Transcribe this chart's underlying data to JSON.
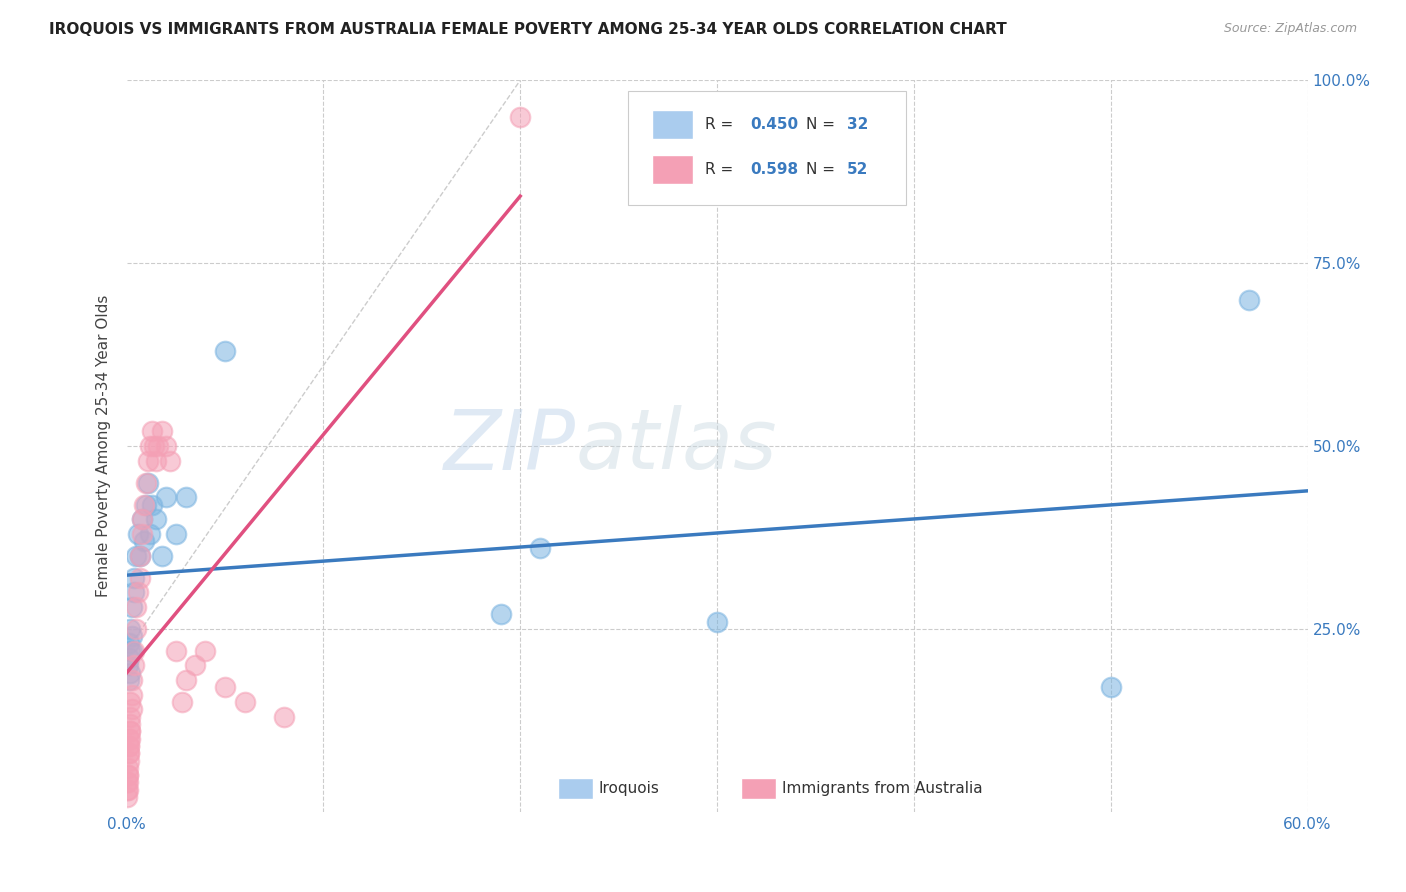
{
  "title": "IROQUOIS VS IMMIGRANTS FROM AUSTRALIA FEMALE POVERTY AMONG 25-34 YEAR OLDS CORRELATION CHART",
  "source": "Source: ZipAtlas.com",
  "ylabel": "Female Poverty Among 25-34 Year Olds",
  "xlim": [
    0.0,
    0.6
  ],
  "ylim": [
    0.0,
    1.0
  ],
  "iroquois_color": "#7ab3e0",
  "australia_color": "#f4a0b5",
  "iroquois_line_color": "#3a7abf",
  "australia_line_color": "#e05080",
  "watermark_zip": "ZIP",
  "watermark_atlas": "atlas",
  "iroquois_x": [
    0.0005,
    0.001,
    0.001,
    0.0015,
    0.002,
    0.002,
    0.002,
    0.003,
    0.003,
    0.003,
    0.004,
    0.004,
    0.005,
    0.006,
    0.007,
    0.008,
    0.009,
    0.01,
    0.011,
    0.012,
    0.013,
    0.015,
    0.018,
    0.02,
    0.025,
    0.03,
    0.05,
    0.19,
    0.21,
    0.3,
    0.5,
    0.57
  ],
  "iroquois_y": [
    0.2,
    0.18,
    0.23,
    0.21,
    0.22,
    0.25,
    0.19,
    0.24,
    0.28,
    0.22,
    0.3,
    0.32,
    0.35,
    0.38,
    0.35,
    0.4,
    0.37,
    0.42,
    0.45,
    0.38,
    0.42,
    0.4,
    0.35,
    0.43,
    0.38,
    0.43,
    0.63,
    0.27,
    0.36,
    0.26,
    0.17,
    0.7
  ],
  "australia_x": [
    0.0002,
    0.0003,
    0.0004,
    0.0005,
    0.0006,
    0.0007,
    0.0008,
    0.0009,
    0.001,
    0.001,
    0.0012,
    0.0013,
    0.0014,
    0.0015,
    0.0016,
    0.0017,
    0.0018,
    0.002,
    0.002,
    0.002,
    0.003,
    0.003,
    0.003,
    0.004,
    0.004,
    0.005,
    0.005,
    0.006,
    0.007,
    0.007,
    0.008,
    0.008,
    0.009,
    0.01,
    0.011,
    0.012,
    0.013,
    0.014,
    0.015,
    0.016,
    0.018,
    0.02,
    0.022,
    0.025,
    0.028,
    0.03,
    0.035,
    0.04,
    0.05,
    0.06,
    0.08,
    0.2
  ],
  "australia_y": [
    0.02,
    0.03,
    0.04,
    0.03,
    0.05,
    0.04,
    0.06,
    0.05,
    0.07,
    0.08,
    0.09,
    0.08,
    0.1,
    0.09,
    0.11,
    0.1,
    0.12,
    0.11,
    0.13,
    0.15,
    0.14,
    0.16,
    0.18,
    0.2,
    0.22,
    0.25,
    0.28,
    0.3,
    0.32,
    0.35,
    0.38,
    0.4,
    0.42,
    0.45,
    0.48,
    0.5,
    0.52,
    0.5,
    0.48,
    0.5,
    0.52,
    0.5,
    0.48,
    0.22,
    0.15,
    0.18,
    0.2,
    0.22,
    0.17,
    0.15,
    0.13,
    0.95
  ]
}
